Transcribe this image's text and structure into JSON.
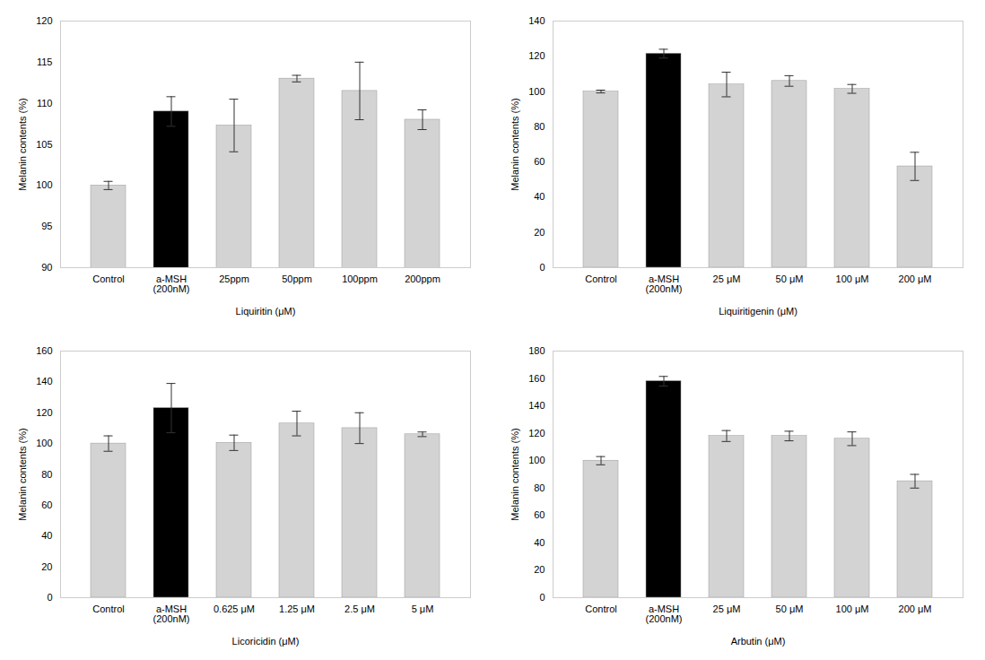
{
  "chart_data": [
    {
      "type": "bar",
      "xlabel": "Liquiritin (μM)",
      "ylabel": "Melanin contents (%)",
      "categories": [
        "Control",
        "a-MSH\n(200nM)",
        "25ppm",
        "50ppm",
        "100ppm",
        "200ppm"
      ],
      "values": [
        100.0,
        109.0,
        107.3,
        113.0,
        111.5,
        108.0
      ],
      "errors": [
        0.5,
        1.8,
        3.2,
        0.4,
        3.5,
        1.2
      ],
      "ylim": [
        90,
        120
      ],
      "yticks": [
        90,
        95,
        100,
        105,
        110,
        115,
        120
      ],
      "colors": [
        "#d3d3d3",
        "#000000",
        "#d3d3d3",
        "#d3d3d3",
        "#d3d3d3",
        "#d3d3d3"
      ],
      "grid": false
    },
    {
      "type": "bar",
      "xlabel": "Liquiritigenin (μM)",
      "ylabel": "Melanin contents (%)",
      "categories": [
        "Control",
        "a-MSH\n(200nM)",
        "25 μM",
        "50 μM",
        "100 μM",
        "200 μM"
      ],
      "values": [
        100.0,
        121.5,
        104.0,
        106.0,
        101.5,
        57.5
      ],
      "errors": [
        0.8,
        2.5,
        7.0,
        3.0,
        2.5,
        8.0
      ],
      "ylim": [
        0,
        140
      ],
      "yticks": [
        0,
        20,
        40,
        60,
        80,
        100,
        120,
        140
      ],
      "colors": [
        "#d3d3d3",
        "#000000",
        "#d3d3d3",
        "#d3d3d3",
        "#d3d3d3",
        "#d3d3d3"
      ],
      "grid": false
    },
    {
      "type": "bar",
      "xlabel": "Licoricidin (μM)",
      "ylabel": "Melanin contents (%)",
      "categories": [
        "Control",
        "a-MSH\n(200nM)",
        "0.625 μM",
        "1.25 μM",
        "2.5 μM",
        "5 μM"
      ],
      "values": [
        100.0,
        123.0,
        100.5,
        113.0,
        110.0,
        106.0
      ],
      "errors": [
        5.0,
        16.0,
        5.0,
        8.0,
        10.0,
        1.5
      ],
      "ylim": [
        0,
        160
      ],
      "yticks": [
        0,
        20,
        40,
        60,
        80,
        100,
        120,
        140,
        160
      ],
      "colors": [
        "#d3d3d3",
        "#000000",
        "#d3d3d3",
        "#d3d3d3",
        "#d3d3d3",
        "#d3d3d3"
      ],
      "grid": false
    },
    {
      "type": "bar",
      "xlabel": "Arbutin (μM)",
      "ylabel": "Melanin contents (%)",
      "categories": [
        "Control",
        "a-MSH\n(200nM)",
        "25 μM",
        "50 μM",
        "100 μM",
        "200 μM"
      ],
      "values": [
        100.0,
        158.0,
        118.0,
        118.0,
        116.0,
        85.0
      ],
      "errors": [
        3.0,
        3.5,
        4.0,
        3.5,
        5.0,
        5.0
      ],
      "ylim": [
        0,
        180
      ],
      "yticks": [
        0,
        20,
        40,
        60,
        80,
        100,
        120,
        140,
        160,
        180
      ],
      "colors": [
        "#d3d3d3",
        "#000000",
        "#d3d3d3",
        "#d3d3d3",
        "#d3d3d3",
        "#d3d3d3"
      ],
      "grid": false
    }
  ]
}
